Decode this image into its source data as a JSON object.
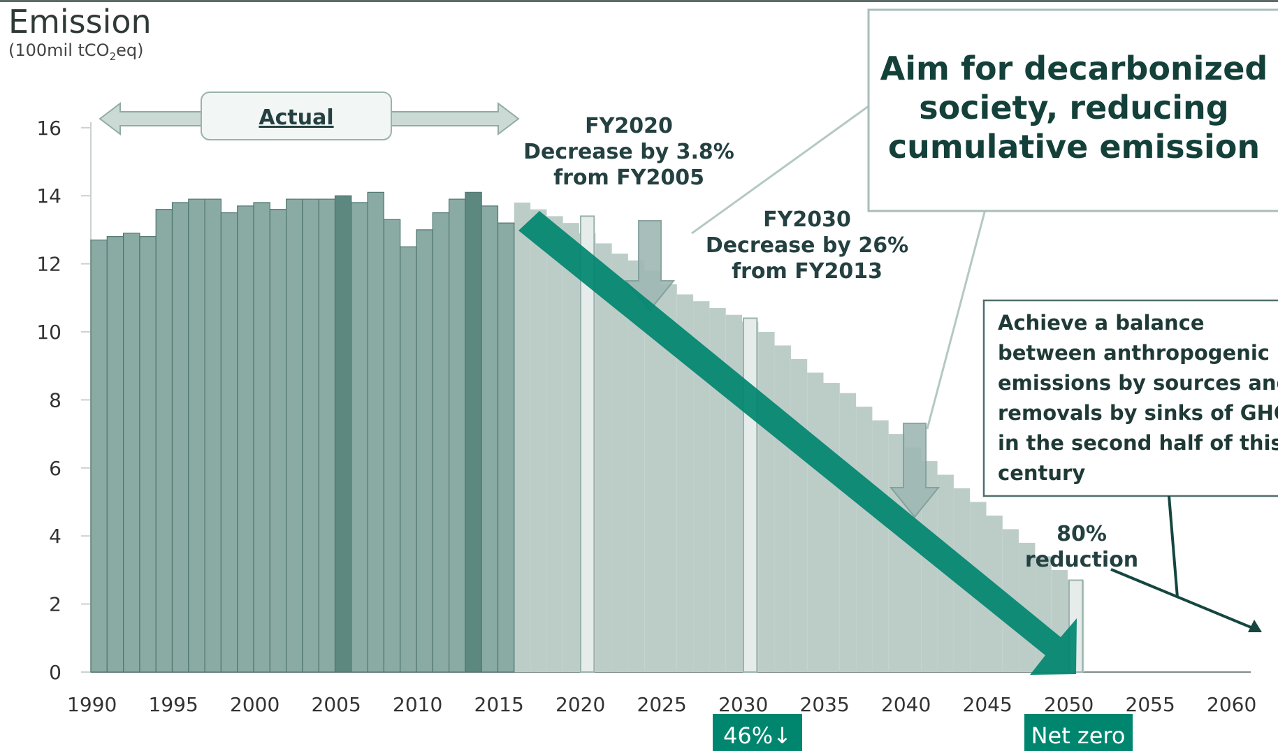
{
  "title": "Emission",
  "unit": {
    "prefix": "(100mil tCO",
    "sub": "2",
    "suffix": "eq)"
  },
  "chart_data": {
    "type": "bar",
    "ylim": [
      0,
      16
    ],
    "yticks": [
      0,
      2,
      4,
      6,
      8,
      10,
      12,
      14,
      16
    ],
    "xlim": [
      1990,
      2060
    ],
    "xticks": [
      1990,
      1995,
      2000,
      2005,
      2010,
      2015,
      2020,
      2025,
      2030,
      2035,
      2040,
      2045,
      2050,
      2055,
      2060
    ],
    "actual": {
      "years": [
        1990,
        1991,
        1992,
        1993,
        1994,
        1995,
        1996,
        1997,
        1998,
        1999,
        2000,
        2001,
        2002,
        2003,
        2004,
        2005,
        2006,
        2007,
        2008,
        2009,
        2010,
        2011,
        2012,
        2013,
        2014,
        2015
      ],
      "values": [
        12.7,
        12.8,
        12.9,
        12.8,
        13.6,
        13.8,
        13.9,
        13.9,
        13.5,
        13.7,
        13.8,
        13.6,
        13.9,
        13.9,
        13.9,
        14.0,
        13.8,
        14.1,
        13.3,
        12.5,
        13.0,
        13.5,
        13.9,
        14.1,
        13.7,
        13.2
      ],
      "highlight_years": [
        2005,
        2013
      ]
    },
    "pathway": {
      "years": [
        2016,
        2017,
        2018,
        2019,
        2020,
        2021,
        2022,
        2023,
        2024,
        2025,
        2026,
        2027,
        2028,
        2029,
        2030,
        2031,
        2032,
        2033,
        2034,
        2035,
        2036,
        2037,
        2038,
        2039,
        2040,
        2041,
        2042,
        2043,
        2044,
        2045,
        2046,
        2047,
        2048,
        2049,
        2050
      ],
      "values": [
        13.8,
        13.6,
        13.4,
        13.2,
        12.9,
        12.6,
        12.3,
        12.1,
        11.8,
        11.4,
        11.1,
        10.9,
        10.7,
        10.5,
        10.3,
        10.0,
        9.6,
        9.2,
        8.8,
        8.5,
        8.2,
        7.8,
        7.4,
        7.0,
        6.6,
        6.2,
        5.8,
        5.4,
        5.0,
        4.6,
        4.2,
        3.8,
        3.4,
        3.0,
        2.7
      ]
    },
    "targets": [
      {
        "year": 2020,
        "value": 13.4
      },
      {
        "year": 2030,
        "value": 10.4
      },
      {
        "year": 2050,
        "value": 2.7
      }
    ],
    "actual_label": "Actual",
    "fy2020_label": [
      "FY2020",
      "Decrease by 3.8%",
      "from FY2005"
    ],
    "fy2030_label": [
      "FY2030",
      "Decrease by 26%",
      "from FY2013"
    ],
    "aim_label": [
      "Aim for decarbonized",
      "society, reducing",
      "cumulative emission"
    ],
    "balance_label": [
      "Achieve a balance",
      "between anthropogenic",
      "emissions by sources and",
      "removals by sinks of GHG",
      "in the second half of this",
      "century"
    ],
    "reduction_label": [
      "80%",
      "reduction"
    ],
    "badge_2030": "46%↓",
    "badge_2050": "Net zero",
    "colors": {
      "actual": "#8aaaa4",
      "highlight": "#5d8880",
      "pathway": "#bccdc8",
      "target": "#e5ecea",
      "arrow": "#00866f"
    }
  }
}
